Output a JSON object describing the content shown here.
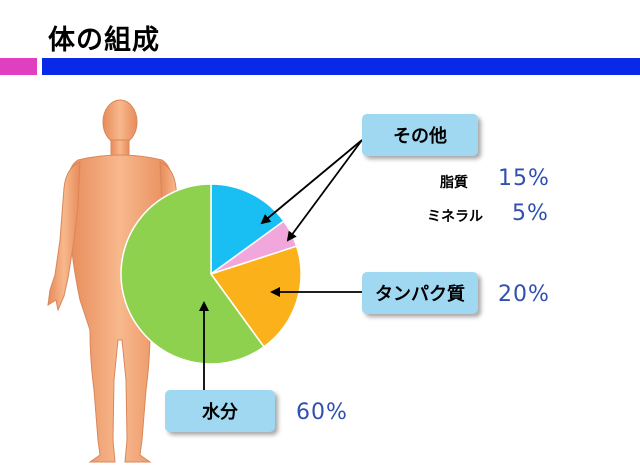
{
  "slide": {
    "title": "体の組成"
  },
  "colors": {
    "pink_bar": "#e040c0",
    "blue_bar": "#0a28e8",
    "body_skin": "#f5a97a",
    "callout_bg": "#9fd8f0",
    "percent_text": "#3050b0"
  },
  "chart_data": {
    "type": "pie",
    "slices": [
      {
        "label": "脂質",
        "value": 15,
        "percent_label": "15%",
        "color": "#19bff2"
      },
      {
        "label": "ミネラル",
        "value": 5,
        "percent_label": "5%",
        "color": "#f2a7dc"
      },
      {
        "label": "タンパク質",
        "value": 20,
        "percent_label": "20%",
        "color": "#fbb11a"
      },
      {
        "label": "水分",
        "value": 60,
        "percent_label": "60%",
        "color": "#8ed14f"
      }
    ],
    "group_label": "その他"
  },
  "labels": {
    "other": "その他",
    "fat": "脂質",
    "mineral": "ミネラル",
    "protein": "タンパク質",
    "water": "水分",
    "fat_pct": "15%",
    "mineral_pct": "5%",
    "protein_pct": "20%",
    "water_pct": "60%"
  },
  "icons": {
    "body": "human-body-icon"
  }
}
